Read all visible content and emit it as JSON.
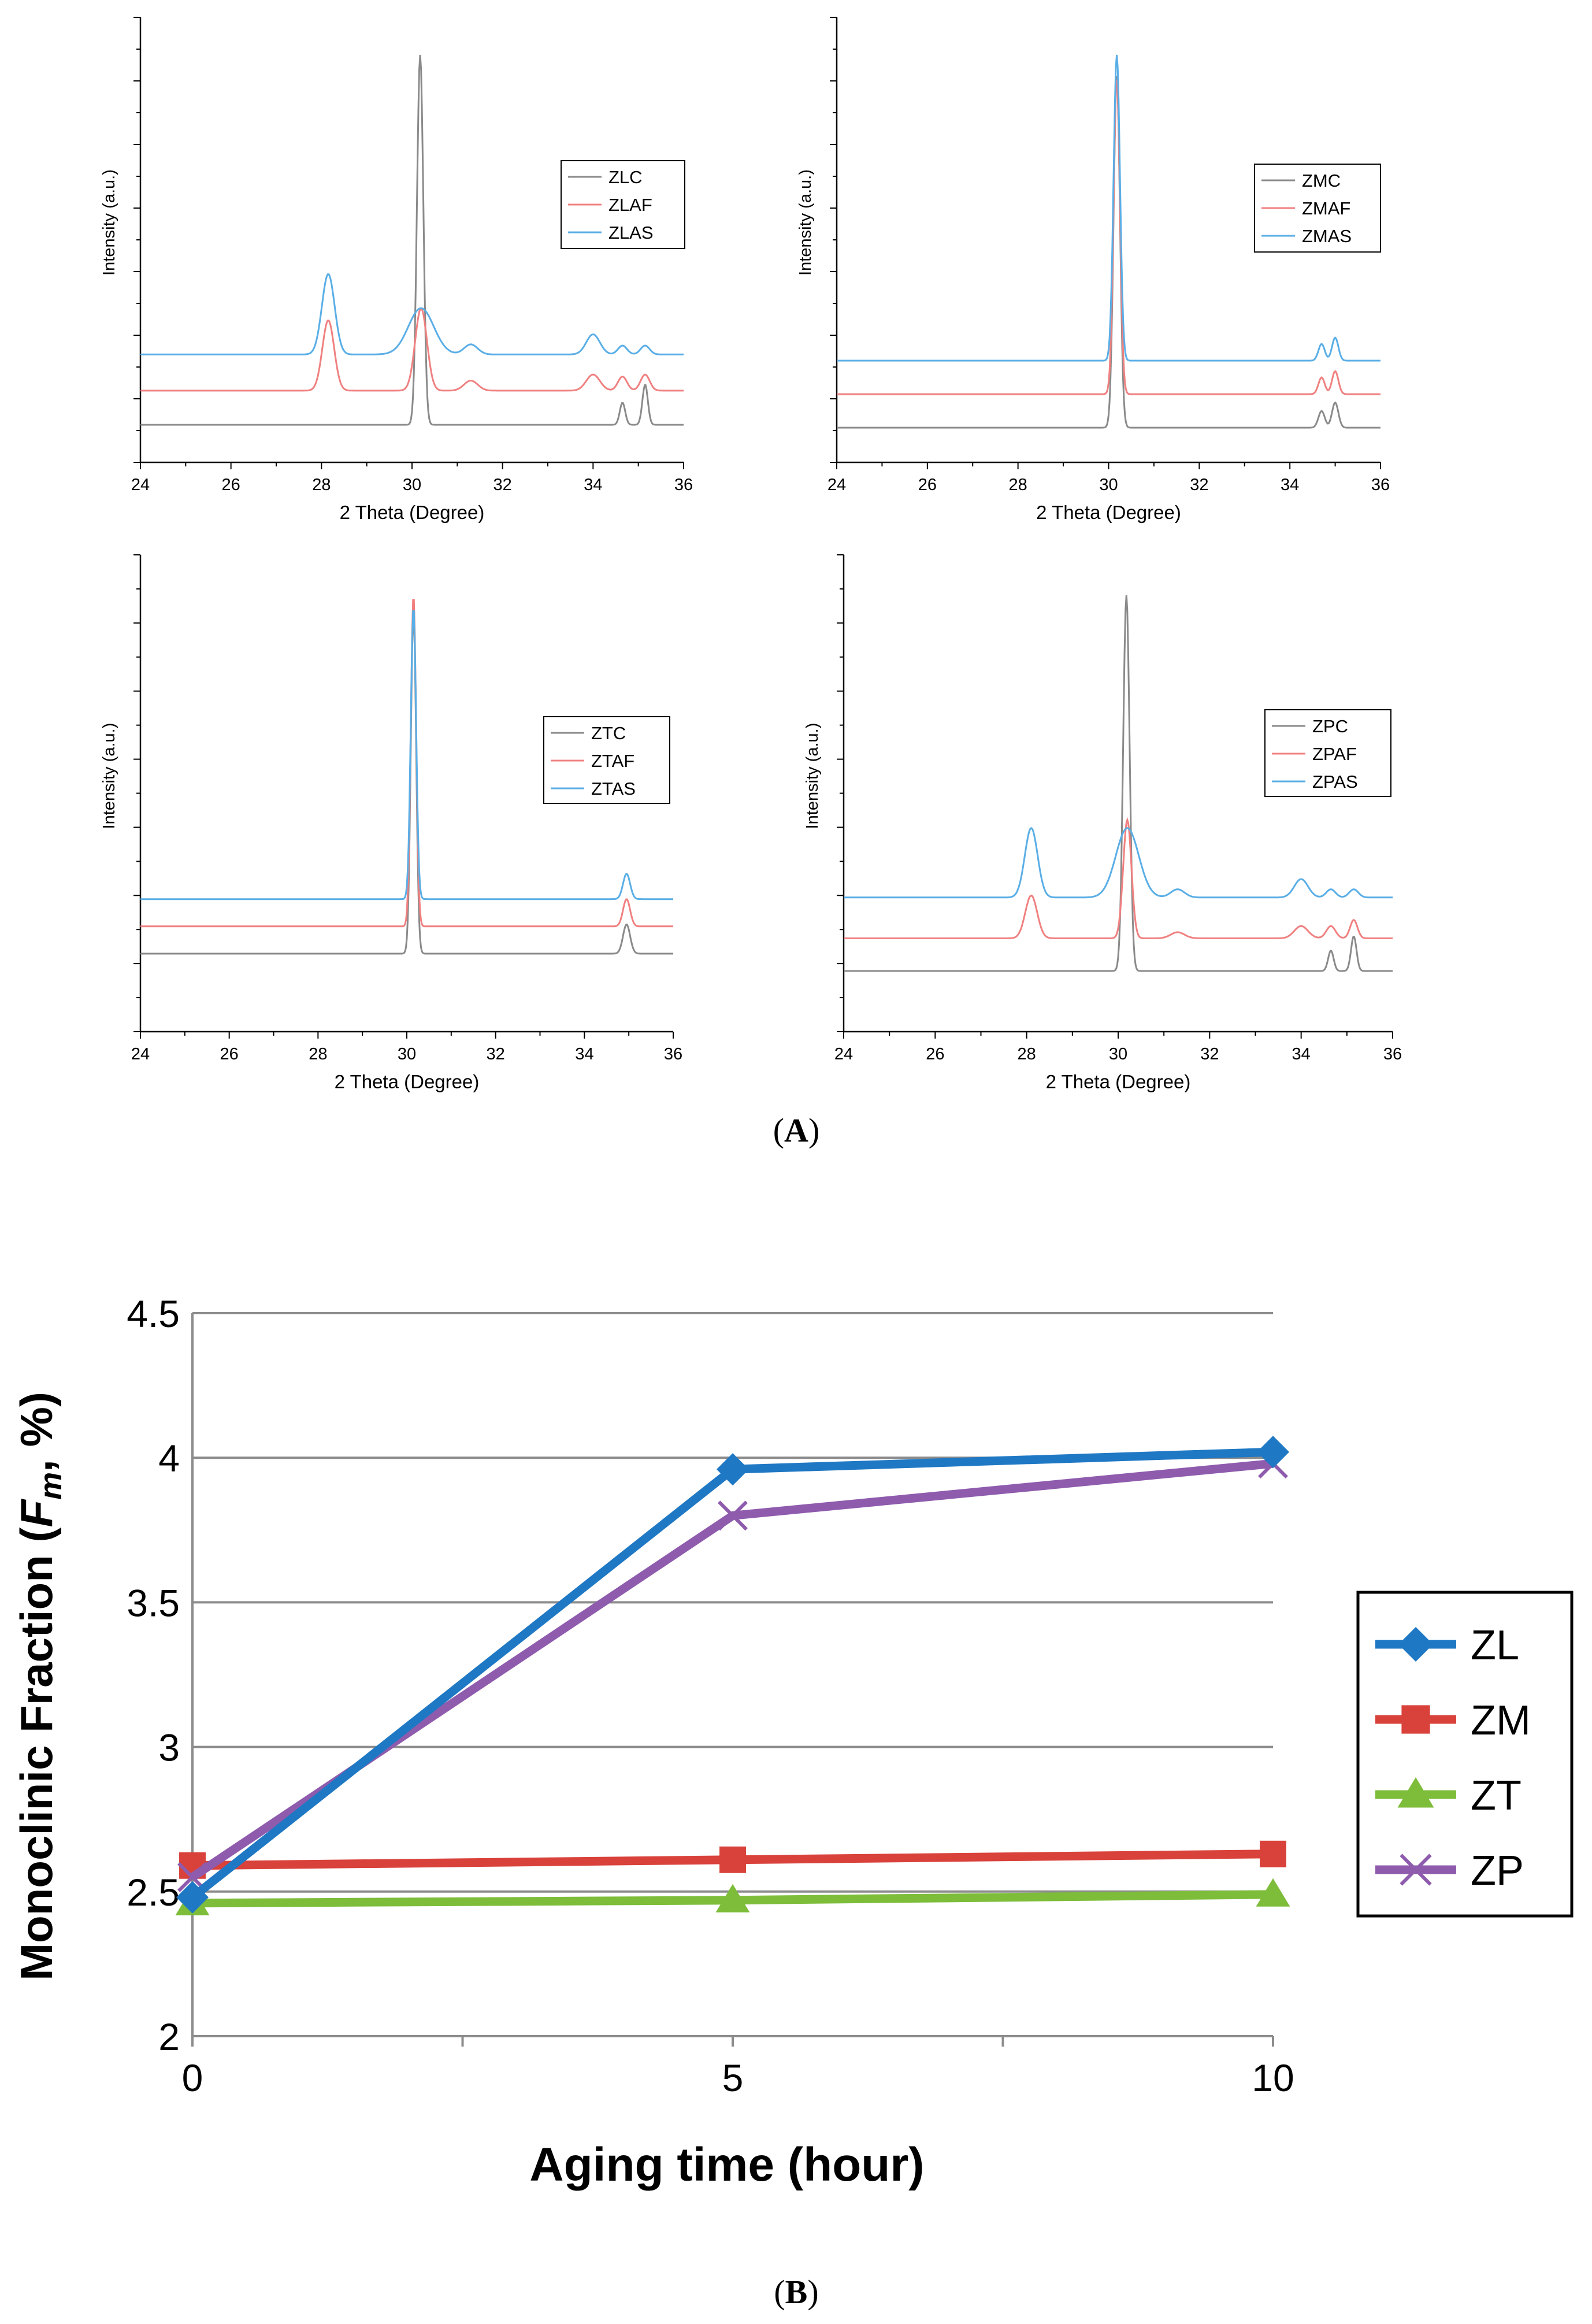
{
  "panels": {
    "a_label": "(A)",
    "b_label": "(B)",
    "a_letter": "A",
    "b_letter": "B"
  },
  "colors": {
    "C": "#8a8a8a",
    "AF": "#f08080",
    "AS": "#5aaee6",
    "ZL": "#1f78c4",
    "ZM": "#d9413b",
    "ZT": "#7dbd3a",
    "ZP": "#8e5bad"
  },
  "chart_data": [
    {
      "type": "line",
      "xlabel": "2 Theta (Degree)",
      "ylabel": "Intensity (a.u.)",
      "xlim": [
        24,
        36
      ],
      "x_ticks": [
        "24",
        "26",
        "28",
        "30",
        "32",
        "34",
        "36"
      ],
      "legend_position": "top-right",
      "series": [
        {
          "name": "ZLC",
          "color_key": "C",
          "baseline": 0.0,
          "peaks": [
            [
              30.18,
              9.2,
              0.07
            ],
            [
              34.65,
              0.55,
              0.06
            ],
            [
              35.15,
              1.0,
              0.06
            ]
          ]
        },
        {
          "name": "ZLAF",
          "color_key": "AF",
          "baseline": 0.85,
          "peaks": [
            [
              28.15,
              1.75,
              0.13
            ],
            [
              30.2,
              2.05,
              0.13
            ],
            [
              31.3,
              0.25,
              0.15
            ],
            [
              34.0,
              0.4,
              0.15
            ],
            [
              34.65,
              0.35,
              0.1
            ],
            [
              35.15,
              0.4,
              0.1
            ]
          ]
        },
        {
          "name": "ZLAS",
          "color_key": "AS",
          "baseline": 1.75,
          "peaks": [
            [
              28.15,
              2.0,
              0.14
            ],
            [
              30.2,
              1.15,
              0.28
            ],
            [
              31.3,
              0.25,
              0.15
            ],
            [
              34.0,
              0.5,
              0.15
            ],
            [
              34.65,
              0.22,
              0.1
            ],
            [
              35.15,
              0.22,
              0.1
            ]
          ]
        }
      ]
    },
    {
      "type": "line",
      "xlabel": "2 Theta (Degree)",
      "ylabel": "Intensity (a.u.)",
      "xlim": [
        24,
        36
      ],
      "x_ticks": [
        "24",
        "26",
        "28",
        "30",
        "32",
        "34",
        "36"
      ],
      "legend_position": "top-right",
      "series": [
        {
          "name": "ZMC",
          "color_key": "C",
          "baseline": 0.0,
          "peaks": [
            [
              30.18,
              8.4,
              0.07
            ],
            [
              34.7,
              0.4,
              0.07
            ],
            [
              35.0,
              0.6,
              0.07
            ]
          ]
        },
        {
          "name": "ZMAF",
          "color_key": "AF",
          "baseline": 0.8,
          "peaks": [
            [
              30.18,
              7.5,
              0.07
            ],
            [
              34.7,
              0.4,
              0.07
            ],
            [
              35.0,
              0.55,
              0.07
            ]
          ]
        },
        {
          "name": "ZMAS",
          "color_key": "AS",
          "baseline": 1.6,
          "peaks": [
            [
              30.18,
              7.3,
              0.07
            ],
            [
              34.7,
              0.4,
              0.07
            ],
            [
              35.0,
              0.55,
              0.07
            ]
          ]
        }
      ]
    },
    {
      "type": "line",
      "xlabel": "2 Theta (Degree)",
      "ylabel": "Intensity (a.u.)",
      "xlim": [
        24,
        36
      ],
      "x_ticks": [
        "24",
        "26",
        "28",
        "30",
        "32",
        "34",
        "36"
      ],
      "legend_position": "top-right",
      "series": [
        {
          "name": "ZTC",
          "color_key": "C",
          "baseline": 0.0,
          "peaks": [
            [
              30.15,
              8.8,
              0.06
            ],
            [
              34.95,
              0.75,
              0.08
            ]
          ]
        },
        {
          "name": "ZTAF",
          "color_key": "AF",
          "baseline": 0.7,
          "peaks": [
            [
              30.15,
              8.5,
              0.06
            ],
            [
              34.95,
              0.7,
              0.08
            ]
          ]
        },
        {
          "name": "ZTAS",
          "color_key": "AS",
          "baseline": 1.4,
          "peaks": [
            [
              30.15,
              7.5,
              0.06
            ],
            [
              34.95,
              0.65,
              0.08
            ]
          ]
        }
      ]
    },
    {
      "type": "line",
      "xlabel": "2 Theta (Degree)",
      "ylabel": "Intensity (a.u.)",
      "xlim": [
        24,
        36
      ],
      "x_ticks": [
        "24",
        "26",
        "28",
        "30",
        "32",
        "34",
        "36"
      ],
      "legend_position": "top-right",
      "series": [
        {
          "name": "ZPC",
          "color_key": "C",
          "baseline": 0.0,
          "peaks": [
            [
              30.18,
              9.2,
              0.07
            ],
            [
              34.65,
              0.5,
              0.06
            ],
            [
              35.15,
              0.85,
              0.06
            ]
          ]
        },
        {
          "name": "ZPAF",
          "color_key": "AF",
          "baseline": 0.8,
          "peaks": [
            [
              28.1,
              1.05,
              0.13
            ],
            [
              30.2,
              2.9,
              0.09
            ],
            [
              31.3,
              0.15,
              0.15
            ],
            [
              34.0,
              0.3,
              0.15
            ],
            [
              34.65,
              0.3,
              0.1
            ],
            [
              35.15,
              0.45,
              0.08
            ]
          ]
        },
        {
          "name": "ZPAS",
          "color_key": "AS",
          "baseline": 1.8,
          "peaks": [
            [
              28.1,
              1.7,
              0.14
            ],
            [
              30.2,
              1.7,
              0.25
            ],
            [
              31.3,
              0.2,
              0.15
            ],
            [
              34.0,
              0.45,
              0.15
            ],
            [
              34.65,
              0.2,
              0.1
            ],
            [
              35.15,
              0.2,
              0.1
            ]
          ]
        }
      ]
    },
    {
      "type": "line",
      "xlabel": "Aging time (hour)",
      "ylabel_prefix": "Monoclinic Fraction (",
      "ylabel_var": "F",
      "ylabel_sub": "m",
      "ylabel_suffix": ", %)",
      "ylim": [
        2,
        4.5
      ],
      "y_ticks": [
        "2",
        "2.5",
        "3",
        "3.5",
        "4",
        "4.5"
      ],
      "x_ticks": [
        "0",
        "5",
        "10"
      ],
      "grid": true,
      "legend_position": "right",
      "x": [
        0,
        5,
        10
      ],
      "series": [
        {
          "name": "ZL",
          "marker": "diamond",
          "color_key": "ZL",
          "values": [
            2.48,
            3.96,
            4.02
          ]
        },
        {
          "name": "ZM",
          "marker": "square",
          "color_key": "ZM",
          "values": [
            2.59,
            2.61,
            2.63
          ]
        },
        {
          "name": "ZT",
          "marker": "triangle",
          "color_key": "ZT",
          "values": [
            2.46,
            2.47,
            2.49
          ]
        },
        {
          "name": "ZP",
          "marker": "x",
          "color_key": "ZP",
          "values": [
            2.55,
            3.8,
            3.98
          ]
        }
      ]
    }
  ]
}
